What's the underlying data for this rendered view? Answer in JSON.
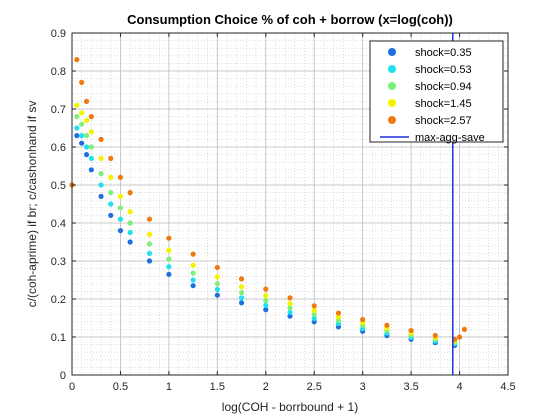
{
  "chart_data": {
    "type": "scatter",
    "title": "Consumption Choice % of coh + borrow (x=log(coh))",
    "xlabel": "log(COH - borrbound + 1)",
    "ylabel": "c/(coh-aprime) if br; c/cashonhand if sv",
    "xlim": [
      0,
      4.5
    ],
    "ylim": [
      0,
      0.9
    ],
    "xticks": [
      0,
      0.5,
      1,
      1.5,
      2,
      2.5,
      3,
      3.5,
      4,
      4.5
    ],
    "yticks": [
      0,
      0.1,
      0.2,
      0.3,
      0.4,
      0.5,
      0.6,
      0.7,
      0.8,
      0.9
    ],
    "xtick_labels": [
      "0",
      "0.5",
      "1",
      "1.5",
      "2",
      "2.5",
      "3",
      "3.5",
      "4",
      "4.5"
    ],
    "ytick_labels": [
      "0",
      "0.1",
      "0.2",
      "0.3",
      "0.4",
      "0.5",
      "0.6",
      "0.7",
      "0.8",
      "0.9"
    ],
    "grid": true,
    "minor_grid": true,
    "legend_position": "top-right",
    "series": [
      {
        "name": "shock=0.35",
        "color": "#1f6fe0",
        "x": [
          0.05,
          0.1,
          0.15,
          0.2,
          0.3,
          0.4,
          0.5,
          0.6,
          0.8,
          1.0,
          1.25,
          1.5,
          1.75,
          2.0,
          2.25,
          2.5,
          2.75,
          3.0,
          3.25,
          3.5,
          3.75,
          3.95
        ],
        "y": [
          0.63,
          0.61,
          0.58,
          0.54,
          0.47,
          0.42,
          0.38,
          0.35,
          0.3,
          0.265,
          0.235,
          0.21,
          0.19,
          0.172,
          0.155,
          0.14,
          0.127,
          0.115,
          0.104,
          0.094,
          0.085,
          0.078
        ]
      },
      {
        "name": "shock=0.53",
        "color": "#20e0f0",
        "x": [
          0.05,
          0.1,
          0.15,
          0.2,
          0.3,
          0.4,
          0.5,
          0.6,
          0.8,
          1.0,
          1.25,
          1.5,
          1.75,
          2.0,
          2.25,
          2.5,
          2.75,
          3.0,
          3.25,
          3.5,
          3.75,
          3.95
        ],
        "y": [
          0.65,
          0.63,
          0.6,
          0.57,
          0.5,
          0.45,
          0.41,
          0.375,
          0.32,
          0.285,
          0.25,
          0.225,
          0.203,
          0.183,
          0.165,
          0.149,
          0.135,
          0.122,
          0.11,
          0.099,
          0.089,
          0.082
        ]
      },
      {
        "name": "shock=0.94",
        "color": "#7ef07a",
        "x": [
          0.05,
          0.1,
          0.15,
          0.2,
          0.3,
          0.4,
          0.5,
          0.6,
          0.8,
          1.0,
          1.25,
          1.5,
          1.75,
          2.0,
          2.25,
          2.5,
          2.75,
          3.0,
          3.25,
          3.5,
          3.75,
          3.95
        ],
        "y": [
          0.68,
          0.66,
          0.63,
          0.6,
          0.53,
          0.48,
          0.44,
          0.4,
          0.345,
          0.305,
          0.268,
          0.24,
          0.217,
          0.196,
          0.177,
          0.16,
          0.144,
          0.13,
          0.117,
          0.105,
          0.094,
          0.086
        ]
      },
      {
        "name": "shock=1.45",
        "color": "#f5f200",
        "x": [
          0.05,
          0.1,
          0.15,
          0.2,
          0.3,
          0.4,
          0.5,
          0.6,
          0.8,
          1.0,
          1.25,
          1.5,
          1.75,
          2.0,
          2.25,
          2.5,
          2.75,
          3.0,
          3.25,
          3.5,
          3.75,
          3.95
        ],
        "y": [
          0.71,
          0.69,
          0.67,
          0.64,
          0.57,
          0.52,
          0.47,
          0.43,
          0.37,
          0.328,
          0.289,
          0.258,
          0.232,
          0.209,
          0.188,
          0.17,
          0.153,
          0.138,
          0.124,
          0.111,
          0.099,
          0.09
        ]
      },
      {
        "name": "shock=2.57",
        "color": "#f07a10",
        "x": [
          0.0,
          0.05,
          0.1,
          0.15,
          0.2,
          0.3,
          0.4,
          0.5,
          0.6,
          0.8,
          1.0,
          1.25,
          1.5,
          1.75,
          2.0,
          2.25,
          2.5,
          2.75,
          3.0,
          3.25,
          3.5,
          3.75,
          3.95,
          4.0,
          4.05
        ],
        "y": [
          0.5,
          0.83,
          0.77,
          0.72,
          0.68,
          0.62,
          0.57,
          0.52,
          0.48,
          0.41,
          0.36,
          0.318,
          0.283,
          0.253,
          0.226,
          0.203,
          0.182,
          0.163,
          0.146,
          0.131,
          0.117,
          0.104,
          0.094,
          0.1,
          0.12
        ]
      }
    ],
    "reference_line": {
      "name": "max-agg-save",
      "x": 3.93,
      "color": "#2030e0"
    }
  }
}
